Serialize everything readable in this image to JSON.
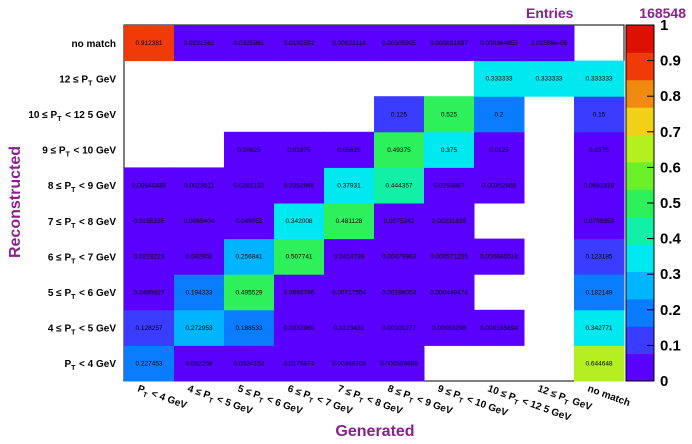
{
  "stats": {
    "label": "Entries",
    "value": "168548"
  },
  "chart_data": {
    "type": "heatmap",
    "xlabel": "Generated",
    "ylabel": "Reconstructed",
    "x_categories": [
      "P_T < 4 GeV",
      "4 ≤ P_T < 5 GeV",
      "5 ≤ P_T < 6 GeV",
      "6 ≤ P_T < 7 GeV",
      "7 ≤ P_T < 8 GeV",
      "8 ≤ P_T < 9 GeV",
      "9 ≤ P_T < 10 GeV",
      "10 ≤ P_T < 12 5 GeV",
      "12 ≤ P_T GeV",
      "no match"
    ],
    "y_categories": [
      "P_T < 4 GeV",
      "4 ≤ P_T < 5 GeV",
      "5 ≤ P_T < 6 GeV",
      "6 ≤ P_T < 7 GeV",
      "7 ≤ P_T < 8 GeV",
      "8 ≤ P_T < 9 GeV",
      "9 ≤ P_T < 10 GeV",
      "10 ≤ P_T < 12 5 GeV",
      "12 ≤ P_T GeV",
      "no match"
    ],
    "cells": [
      {
        "row": 0,
        "col": 0,
        "value": 0.227453,
        "text": "0.227453"
      },
      {
        "row": 0,
        "col": 1,
        "value": 0.052259,
        "text": "0.052259"
      },
      {
        "row": 0,
        "col": 2,
        "value": 0.0534153,
        "text": "0.0534153"
      },
      {
        "row": 0,
        "col": 3,
        "value": 0.0176874,
        "text": "0.0176874"
      },
      {
        "row": 0,
        "col": 4,
        "value": 0.00369706,
        "text": "0.00369706"
      },
      {
        "row": 0,
        "col": 5,
        "value": 0.000559888,
        "text": "0.000559888"
      },
      {
        "row": 0,
        "col": 9,
        "value": 0.644648,
        "text": "0.644648"
      },
      {
        "row": 1,
        "col": 0,
        "value": 0.128257,
        "text": "0.128257"
      },
      {
        "row": 1,
        "col": 1,
        "value": 0.272953,
        "text": "0.272953"
      },
      {
        "row": 1,
        "col": 2,
        "value": 0.188533,
        "text": "0.188533"
      },
      {
        "row": 1,
        "col": 3,
        "value": 0.0332969,
        "text": "0.0332969"
      },
      {
        "row": 1,
        "col": 4,
        "value": 0.0123431,
        "text": "0.0123431"
      },
      {
        "row": 1,
        "col": 5,
        "value": 0.00101277,
        "text": "0.00101277"
      },
      {
        "row": 1,
        "col": 6,
        "value": 0.00063298,
        "text": "0.00063298"
      },
      {
        "row": 1,
        "col": 7,
        "value": 0.000185894,
        "text": "0.000185894"
      },
      {
        "row": 1,
        "col": 9,
        "value": 0.342771,
        "text": "0.342771"
      },
      {
        "row": 2,
        "col": 0,
        "value": 0.0489927,
        "text": "0.0489927"
      },
      {
        "row": 2,
        "col": 1,
        "value": 0.194333,
        "text": "0.194333"
      },
      {
        "row": 2,
        "col": 2,
        "value": 0.495529,
        "text": "0.495529"
      },
      {
        "row": 2,
        "col": 3,
        "value": 0.0693796,
        "text": "0.0693796"
      },
      {
        "row": 2,
        "col": 4,
        "value": 0.00717554,
        "text": "0.00717554"
      },
      {
        "row": 2,
        "col": 5,
        "value": 0.00198053,
        "text": "0.00198053"
      },
      {
        "row": 2,
        "col": 6,
        "value": 0.000449474,
        "text": "0.000449474"
      },
      {
        "row": 2,
        "col": 9,
        "value": 0.182149,
        "text": "0.182149"
      },
      {
        "row": 3,
        "col": 0,
        "value": 0.0218223,
        "text": "0.0218223"
      },
      {
        "row": 3,
        "col": 1,
        "value": 0.042902,
        "text": "0.042902"
      },
      {
        "row": 3,
        "col": 2,
        "value": 0.256841,
        "text": "0.256841"
      },
      {
        "row": 3,
        "col": 3,
        "value": 0.507741,
        "text": "0.507741"
      },
      {
        "row": 3,
        "col": 4,
        "value": 0.0414739,
        "text": "0.0414739"
      },
      {
        "row": 3,
        "col": 5,
        "value": 0.00479863,
        "text": "0.00479863"
      },
      {
        "row": 3,
        "col": 6,
        "value": 0.000571265,
        "text": "0.000571265"
      },
      {
        "row": 3,
        "col": 7,
        "value": 0.000685518,
        "text": "0.000685518"
      },
      {
        "row": 3,
        "col": 9,
        "value": 0.123185,
        "text": "0.123185"
      },
      {
        "row": 4,
        "col": 0,
        "value": 0.0155335,
        "text": "0.0155335"
      },
      {
        "row": 4,
        "col": 1,
        "value": 0.0065404,
        "text": "0.0065404"
      },
      {
        "row": 4,
        "col": 2,
        "value": 0.049053,
        "text": "0.049053"
      },
      {
        "row": 4,
        "col": 3,
        "value": 0.342008,
        "text": "0.342008"
      },
      {
        "row": 4,
        "col": 4,
        "value": 0.481128,
        "text": "0.481128"
      },
      {
        "row": 4,
        "col": 5,
        "value": 0.0275242,
        "text": "0.0275242"
      },
      {
        "row": 4,
        "col": 6,
        "value": 0.00231639,
        "text": "0.00231639"
      },
      {
        "row": 4,
        "col": 9,
        "value": 0.0758959,
        "text": "0.0758959"
      },
      {
        "row": 5,
        "col": 0,
        "value": 0.00940439,
        "text": "0.00940439"
      },
      {
        "row": 5,
        "col": 1,
        "value": 0.0023511,
        "text": "0.0023511"
      },
      {
        "row": 5,
        "col": 2,
        "value": 0.0282132,
        "text": "0.0282132"
      },
      {
        "row": 5,
        "col": 3,
        "value": 0.0352665,
        "text": "0.0352665"
      },
      {
        "row": 5,
        "col": 4,
        "value": 0.37931,
        "text": "0.37931"
      },
      {
        "row": 5,
        "col": 5,
        "value": 0.444357,
        "text": "0.444357"
      },
      {
        "row": 5,
        "col": 6,
        "value": 0.0293887,
        "text": "0.0293887"
      },
      {
        "row": 5,
        "col": 7,
        "value": 0.00352665,
        "text": "0.00352665"
      },
      {
        "row": 5,
        "col": 9,
        "value": 0.0681818,
        "text": "0.0681818"
      },
      {
        "row": 6,
        "col": 2,
        "value": 0.00625,
        "text": "0.00625"
      },
      {
        "row": 6,
        "col": 3,
        "value": 0.01875,
        "text": "0.01875"
      },
      {
        "row": 6,
        "col": 4,
        "value": 0.05625,
        "text": "0.05625"
      },
      {
        "row": 6,
        "col": 5,
        "value": 0.49375,
        "text": "0.49375"
      },
      {
        "row": 6,
        "col": 6,
        "value": 0.375,
        "text": "0.375"
      },
      {
        "row": 6,
        "col": 7,
        "value": 0.0125,
        "text": "0.0125"
      },
      {
        "row": 6,
        "col": 9,
        "value": 0.0375,
        "text": "0.0375"
      },
      {
        "row": 7,
        "col": 5,
        "value": 0.125,
        "text": "0.125"
      },
      {
        "row": 7,
        "col": 6,
        "value": 0.525,
        "text": "0.525"
      },
      {
        "row": 7,
        "col": 7,
        "value": 0.2,
        "text": "0.2"
      },
      {
        "row": 7,
        "col": 9,
        "value": 0.15,
        "text": "0.15"
      },
      {
        "row": 8,
        "col": 7,
        "value": 0.333333,
        "text": "0.333333"
      },
      {
        "row": 8,
        "col": 8,
        "value": 0.333333,
        "text": "0.333333"
      },
      {
        "row": 8,
        "col": 9,
        "value": 0.333333,
        "text": "0.333333"
      },
      {
        "row": 9,
        "col": 0,
        "value": 0.912381,
        "text": "0.912381"
      },
      {
        "row": 9,
        "col": 1,
        "value": 0.0221562,
        "text": "0.0221562"
      },
      {
        "row": 9,
        "col": 2,
        "value": 0.0325961,
        "text": "0.0325961"
      },
      {
        "row": 9,
        "col": 3,
        "value": 0.0192592,
        "text": "0.0192592"
      },
      {
        "row": 9,
        "col": 4,
        "value": 0.00923118,
        "text": "0.00923118"
      },
      {
        "row": 9,
        "col": 5,
        "value": 0.00305905,
        "text": "0.00305905"
      },
      {
        "row": 9,
        "col": 6,
        "value": 0.000831897,
        "text": "0.000831897"
      },
      {
        "row": 9,
        "col": 7,
        "value": 0.000364855,
        "text": "0.000364855"
      },
      {
        "row": 9,
        "col": 8,
        "value": 2.02586e-05,
        "text": "2.02586e-05"
      }
    ],
    "zlim": [
      0,
      1
    ],
    "palette_ticks": [
      "0",
      "0.1",
      "0.2",
      "0.3",
      "0.4",
      "0.5",
      "0.6",
      "0.7",
      "0.8",
      "0.9",
      "1"
    ],
    "colors": {
      "title": "#8b1f8f",
      "palette": [
        "#5a00ff",
        "#3a3cff",
        "#0a7cff",
        "#00b4ff",
        "#00e8f0",
        "#12f0a8",
        "#2ef05a",
        "#6af028",
        "#b4f020",
        "#f0d018",
        "#f08a10",
        "#f03a08",
        "#e01000"
      ]
    }
  }
}
